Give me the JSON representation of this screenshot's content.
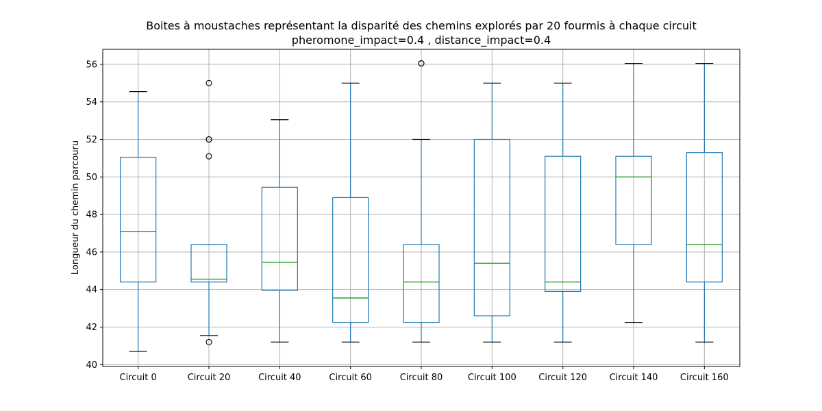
{
  "chart_data": {
    "type": "boxplot",
    "title": "Boites à moustaches représentant la disparité des chemins explorés par 20 fourmis à chaque circuit",
    "subtitle": "pheromone_impact=0.4 , distance_impact=0.4",
    "xlabel": "",
    "ylabel": "Longueur du chemin parcouru",
    "ylim": [
      39.9,
      56.8
    ],
    "yticks": [
      40,
      42,
      44,
      46,
      48,
      50,
      52,
      54,
      56
    ],
    "grid": true,
    "colors": {
      "box": "#1f77b4",
      "median": "#2ca02c",
      "whisker": "#1f77b4",
      "cap": "#000000",
      "flier": "#000000",
      "grid": "#b0b0b0"
    },
    "categories": [
      "Circuit 0",
      "Circuit 20",
      "Circuit 40",
      "Circuit 60",
      "Circuit 80",
      "Circuit 100",
      "Circuit 120",
      "Circuit 140",
      "Circuit 160"
    ],
    "boxes": [
      {
        "whisker_low": 40.7,
        "q1": 44.4,
        "median": 47.1,
        "q3": 51.05,
        "whisker_high": 54.55,
        "fliers": []
      },
      {
        "whisker_low": 41.55,
        "q1": 44.4,
        "median": 44.55,
        "q3": 46.4,
        "whisker_high": 46.4,
        "fliers": [
          41.2,
          51.1,
          52.0,
          52.0,
          55.0
        ]
      },
      {
        "whisker_low": 41.2,
        "q1": 43.95,
        "median": 45.45,
        "q3": 49.45,
        "whisker_high": 53.05,
        "fliers": []
      },
      {
        "whisker_low": 41.2,
        "q1": 42.25,
        "median": 43.55,
        "q3": 48.9,
        "whisker_high": 55.0,
        "fliers": []
      },
      {
        "whisker_low": 41.2,
        "q1": 42.25,
        "median": 44.4,
        "q3": 46.4,
        "whisker_high": 52.0,
        "fliers": [
          56.05,
          56.05
        ]
      },
      {
        "whisker_low": 41.2,
        "q1": 42.6,
        "median": 45.4,
        "q3": 52.0,
        "whisker_high": 55.0,
        "fliers": []
      },
      {
        "whisker_low": 41.2,
        "q1": 43.9,
        "median": 44.4,
        "q3": 51.1,
        "whisker_high": 55.0,
        "fliers": []
      },
      {
        "whisker_low": 42.25,
        "q1": 46.4,
        "median": 50.0,
        "q3": 51.1,
        "whisker_high": 56.05,
        "fliers": []
      },
      {
        "whisker_low": 41.2,
        "q1": 44.4,
        "median": 46.4,
        "q3": 51.3,
        "whisker_high": 56.05,
        "fliers": []
      }
    ]
  }
}
